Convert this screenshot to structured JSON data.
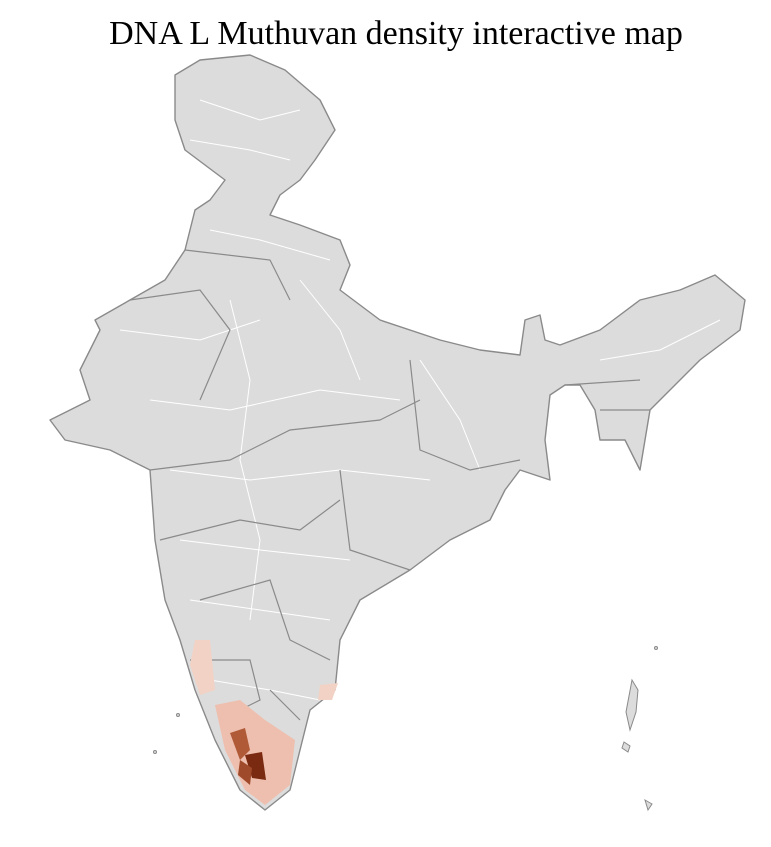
{
  "title": "DNA L Muthuvan density interactive map"
}
